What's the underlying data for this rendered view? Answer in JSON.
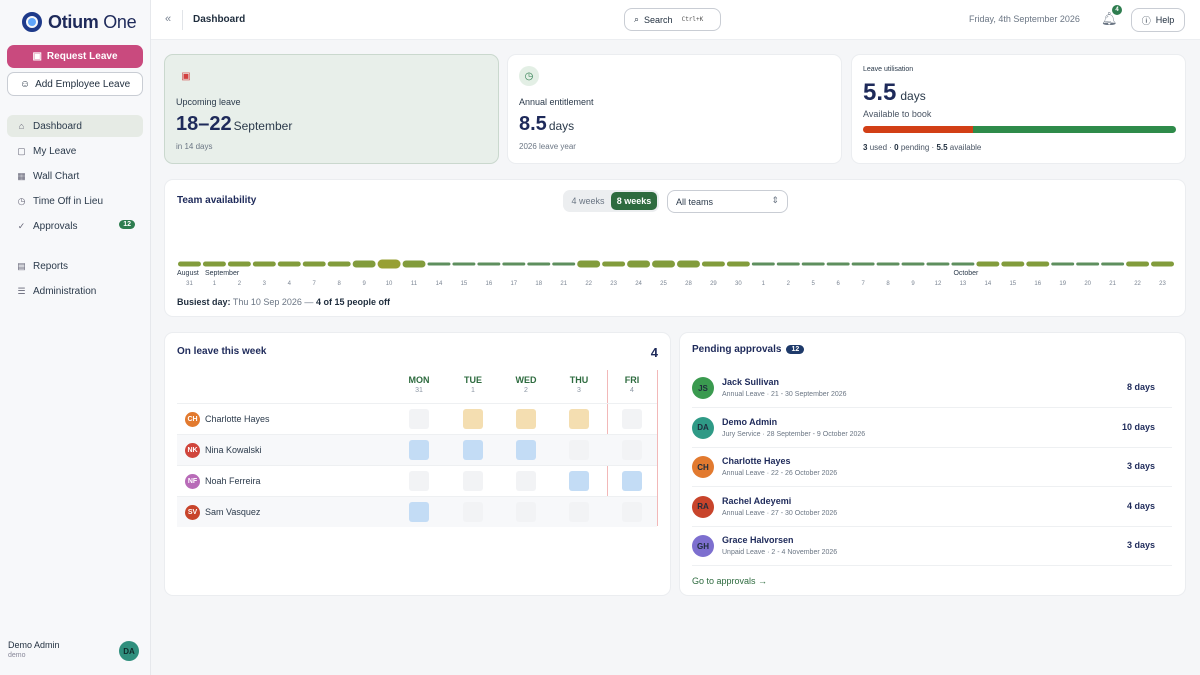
{
  "app": {
    "brand": "Otium",
    "brand_suffix": "One"
  },
  "sidebar": {
    "request_leave": "Request Leave",
    "add_employee_leave": "Add Employee Leave",
    "items": [
      {
        "label": "Dashboard",
        "icon": "home-icon",
        "active": true
      },
      {
        "label": "My Leave",
        "icon": "calendar-icon"
      },
      {
        "label": "Wall Chart",
        "icon": "calendar-grid-icon"
      },
      {
        "label": "Time Off in Lieu",
        "icon": "clock-icon"
      },
      {
        "label": "Approvals",
        "icon": "check-circle-icon",
        "badge": "12"
      },
      {
        "label": "Reports",
        "icon": "document-icon"
      },
      {
        "label": "Administration",
        "icon": "sliders-icon"
      }
    ],
    "user": {
      "name": "Demo Admin",
      "sub": "demo",
      "initials": "DA"
    }
  },
  "topbar": {
    "breadcrumb": "Dashboard",
    "search_label": "Search",
    "search_kbd": "Ctrl+K",
    "date": "Friday, 4th September 2026",
    "notif_count": "4",
    "help_label": "Help"
  },
  "stats": {
    "upcoming": {
      "label": "Upcoming leave",
      "value": "18–22",
      "unit": "September",
      "sub": "in 14 days"
    },
    "entitlement": {
      "label": "Annual entitlement",
      "value": "8.5",
      "unit": "days",
      "sub": "2026 leave year"
    },
    "utilisation": {
      "label": "Leave utilisation",
      "value": "5.5",
      "unit": "days",
      "sub": "Available to book",
      "used": "3",
      "used_label": "used",
      "pending": "0",
      "pending_label": "pending",
      "available": "5.5",
      "available_label": "available",
      "used_fraction": 0.35
    }
  },
  "availability": {
    "title": "Team availability",
    "toggle_4": "4 weeks",
    "toggle_8": "8 weeks",
    "team_select": "All teams",
    "month_aug": "August",
    "month_sep": "September",
    "month_oct": "October",
    "ticks": [
      "31",
      "1",
      "2",
      "3",
      "4",
      "7",
      "8",
      "9",
      "10",
      "11",
      "14",
      "15",
      "16",
      "17",
      "18",
      "21",
      "22",
      "23",
      "24",
      "25",
      "28",
      "29",
      "30",
      "1",
      "2",
      "5",
      "6",
      "7",
      "8",
      "9",
      "12",
      "13",
      "14",
      "15",
      "16",
      "19",
      "20",
      "21",
      "22",
      "23"
    ],
    "off_counts": [
      1,
      1,
      1,
      1,
      1,
      1,
      1,
      2,
      3,
      2,
      0,
      0,
      0,
      0,
      0,
      0,
      2,
      1,
      2,
      2,
      2,
      1,
      1,
      0,
      0,
      0,
      0,
      0,
      0,
      0,
      0,
      0,
      1,
      1,
      1,
      0,
      0,
      0,
      1,
      1
    ],
    "busiest_label": "Busiest day:",
    "busiest_date": "Thu 10 Sep 2026 —",
    "busiest_value": "4 of 15 people off"
  },
  "on_leave": {
    "title": "On leave this week",
    "count": "4",
    "days": [
      {
        "name": "MON",
        "date": "31"
      },
      {
        "name": "TUE",
        "date": "1"
      },
      {
        "name": "WED",
        "date": "2"
      },
      {
        "name": "THU",
        "date": "3"
      },
      {
        "name": "FRI",
        "date": "4"
      }
    ],
    "people": [
      {
        "name": "Charlotte Hayes",
        "initials": "CH",
        "color": "#e27a2f",
        "cells": [
          "e",
          "a",
          "a",
          "a",
          "e"
        ]
      },
      {
        "name": "Nina Kowalski",
        "initials": "NK",
        "color": "#d0453c",
        "cells": [
          "u",
          "u",
          "u",
          "e",
          "e"
        ]
      },
      {
        "name": "Noah Ferreira",
        "initials": "NF",
        "color": "#b86bb8",
        "cells": [
          "e",
          "e",
          "e",
          "u",
          "u"
        ]
      },
      {
        "name": "Sam Vasquez",
        "initials": "SV",
        "color": "#c8442b",
        "cells": [
          "u",
          "e",
          "e",
          "e",
          "e"
        ]
      }
    ]
  },
  "approvals": {
    "title": "Pending approvals",
    "badge": "12",
    "items": [
      {
        "name": "Jack Sullivan",
        "initials": "JS",
        "color": "#3a9a4f",
        "meta": "Annual Leave · 21 - 30 September 2026",
        "days": "8 days"
      },
      {
        "name": "Demo Admin",
        "initials": "DA",
        "color": "#2f9a86",
        "meta": "Jury Service · 28 September - 9 October 2026",
        "days": "10 days"
      },
      {
        "name": "Charlotte Hayes",
        "initials": "CH",
        "color": "#e27a2f",
        "meta": "Annual Leave · 22 - 26 October 2026",
        "days": "3 days"
      },
      {
        "name": "Rachel Adeyemi",
        "initials": "RA",
        "color": "#c8442b",
        "meta": "Annual Leave · 27 - 30 October 2026",
        "days": "4 days"
      },
      {
        "name": "Grace Halvorsen",
        "initials": "GH",
        "color": "#7d6fcf",
        "meta": "Unpaid Leave · 2 - 4 November 2026",
        "days": "3 days"
      }
    ],
    "link": "Go to approvals →"
  }
}
